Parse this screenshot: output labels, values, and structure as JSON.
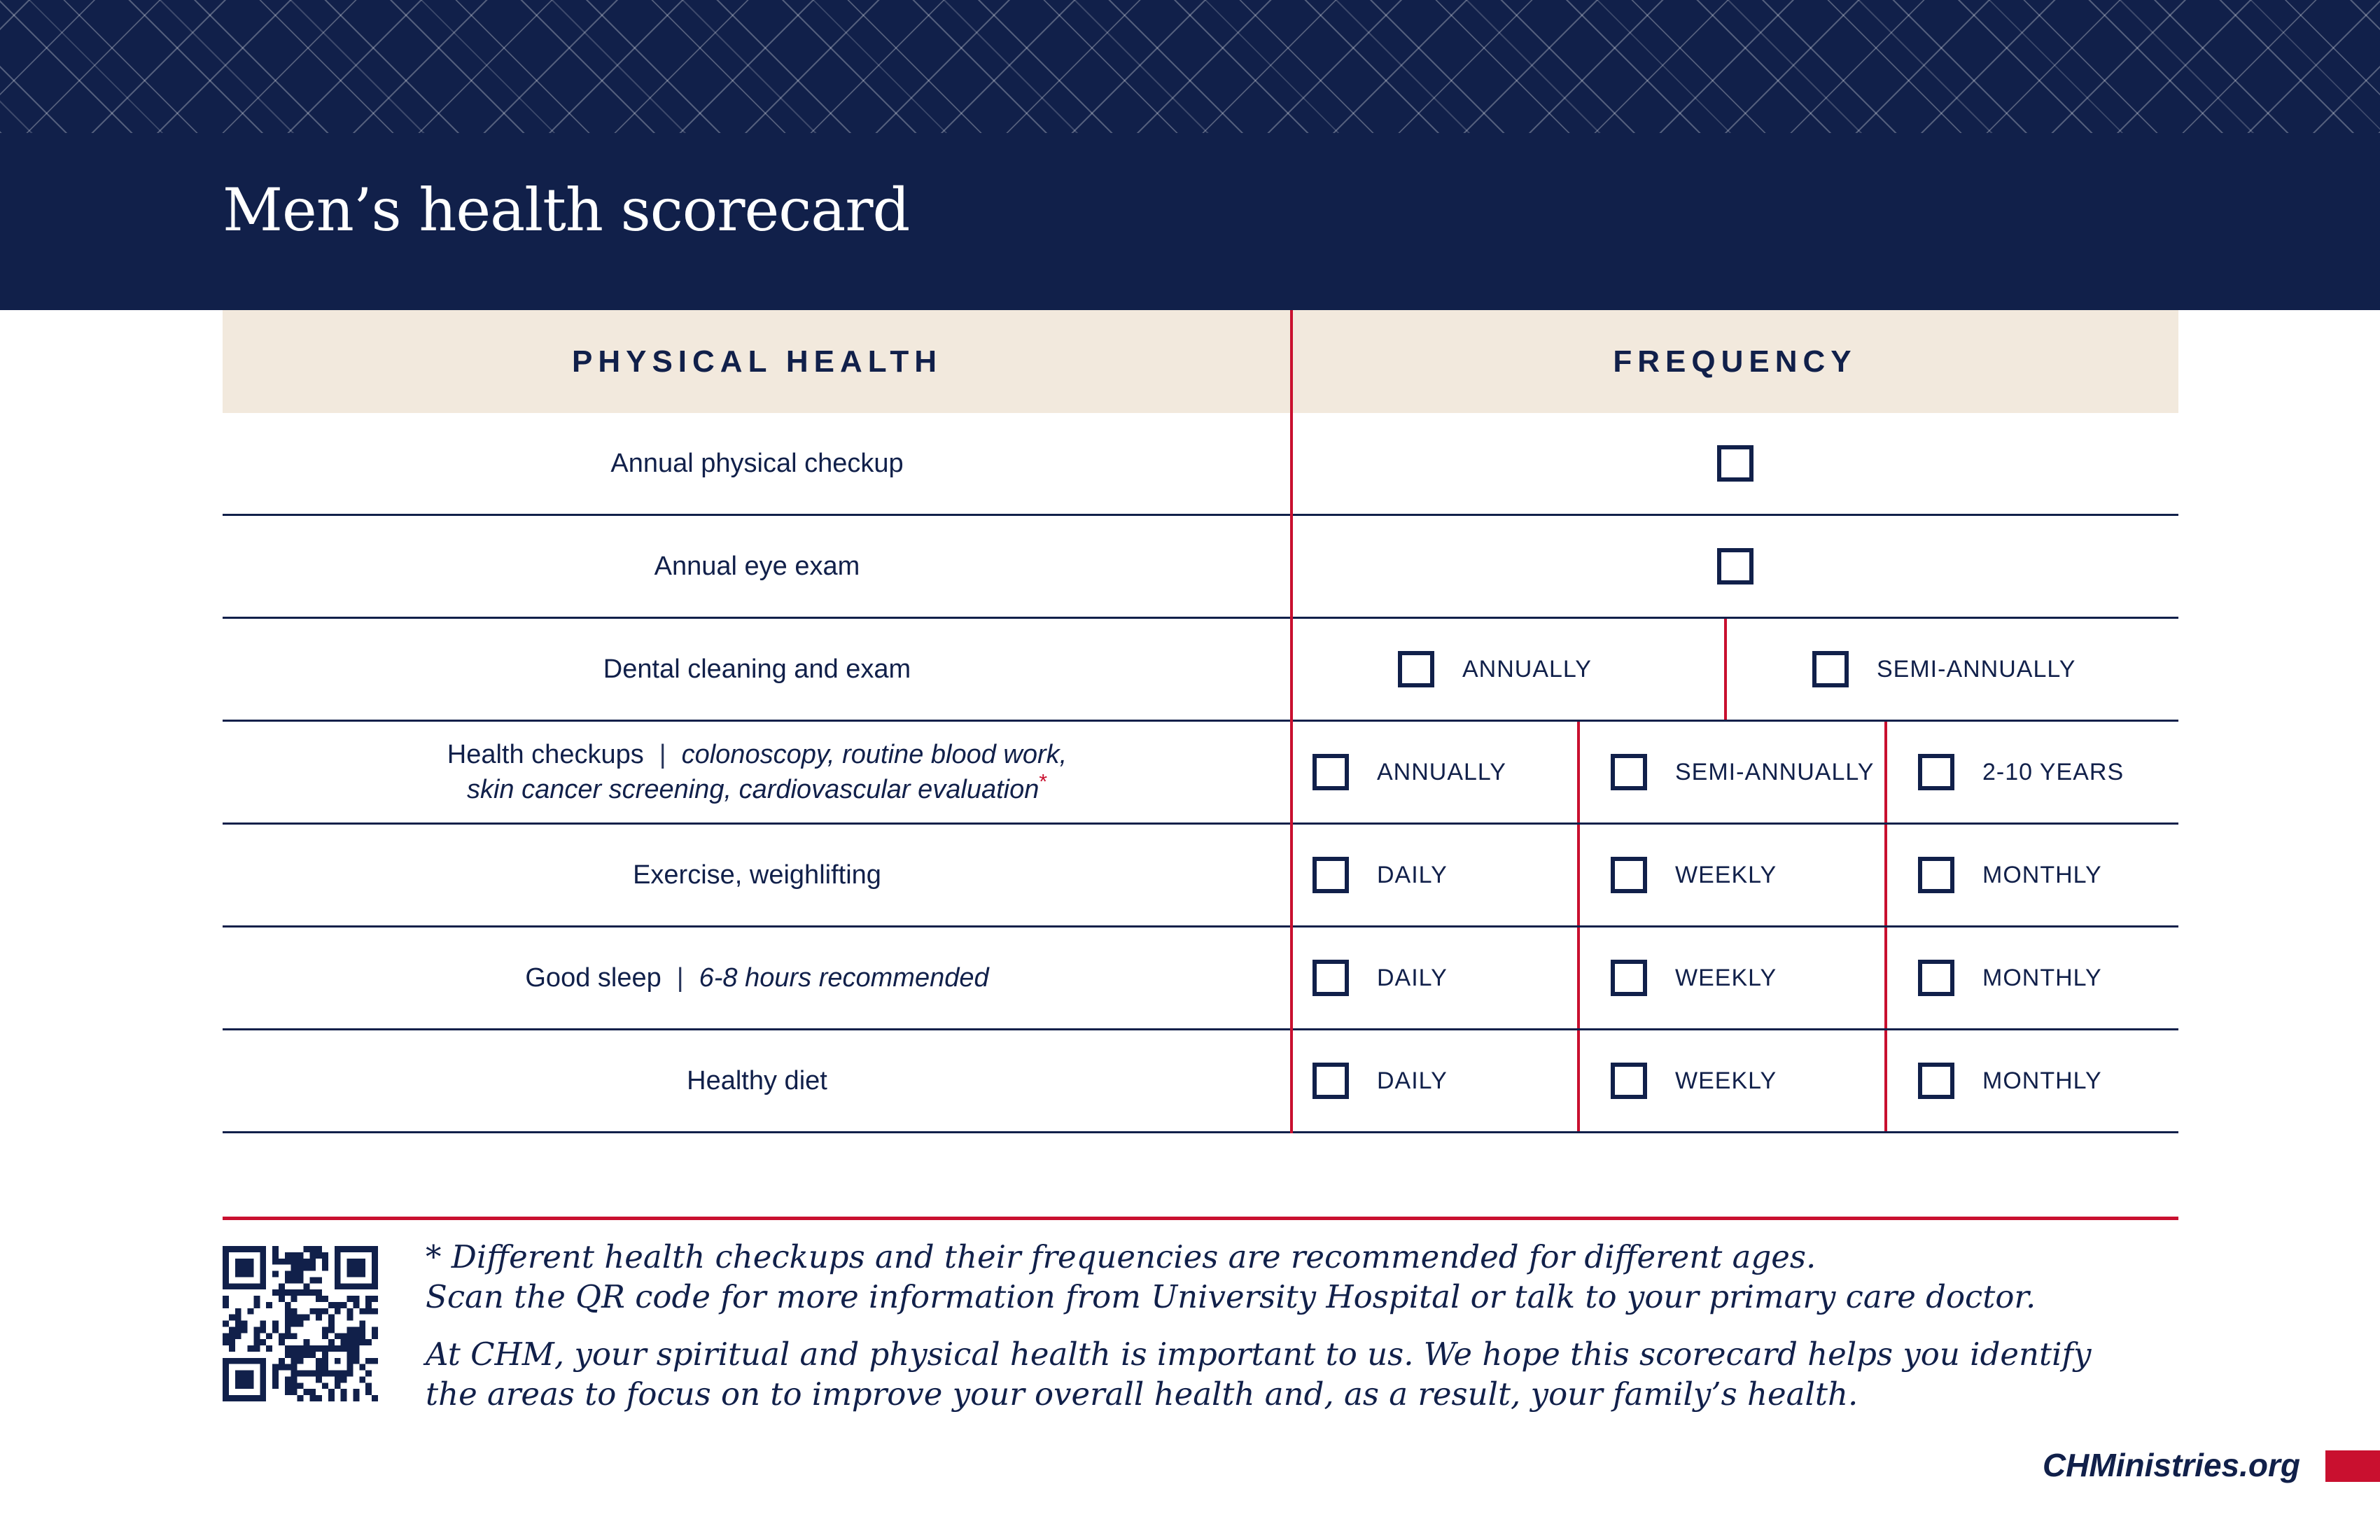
{
  "header": {
    "title": "Men’s health scorecard"
  },
  "table": {
    "col1_header": "PHYSICAL HEALTH",
    "col2_header": "FREQUENCY",
    "rows": [
      {
        "id": "annual-physical-checkup",
        "label": "Annual physical checkup",
        "options": [
          ""
        ]
      },
      {
        "id": "annual-eye-exam",
        "label": "Annual eye exam",
        "options": [
          ""
        ]
      },
      {
        "id": "dental-cleaning-and-exam",
        "label": "Dental cleaning and exam",
        "options": [
          "ANNUALLY",
          "SEMI-ANNUALLY"
        ]
      },
      {
        "id": "health-checkups",
        "label": "Health checkups",
        "detail_line1": "colonoscopy, routine blood work,",
        "detail_line2": "skin cancer screening, cardiovascular evaluation",
        "footnote_marker": "*",
        "options": [
          "ANNUALLY",
          "SEMI-ANNUALLY",
          "2-10 YEARS"
        ]
      },
      {
        "id": "exercise-weighlifting",
        "label": "Exercise, weighlifting",
        "options": [
          "DAILY",
          "WEEKLY",
          "MONTHLY"
        ]
      },
      {
        "id": "good-sleep",
        "label": "Good sleep",
        "detail_inline": "6-8 hours recommended",
        "options": [
          "DAILY",
          "WEEKLY",
          "MONTHLY"
        ]
      },
      {
        "id": "healthy-diet",
        "label": "Healthy diet",
        "options": [
          "DAILY",
          "WEEKLY",
          "MONTHLY"
        ]
      }
    ],
    "separator_glyph": "|"
  },
  "footnotes": {
    "asterisk_line1": "* Different health checkups and their frequencies are recommended for different ages.",
    "asterisk_line2": "Scan the QR code for more information from University Hospital or talk to your primary care doctor.",
    "chm_line1": "At CHM, your spiritual and physical health is important to us. We hope this scorecard helps you identify",
    "chm_line2": "the areas to focus on to improve your overall health and, as a result, your family’s health."
  },
  "footer": {
    "website": "CHMinistries.org"
  },
  "icons": {
    "qr_code": "qr-code"
  },
  "colors": {
    "navy": "#11204a",
    "red": "#c9102f",
    "cream": "#f2e9dd",
    "white": "#ffffff"
  }
}
